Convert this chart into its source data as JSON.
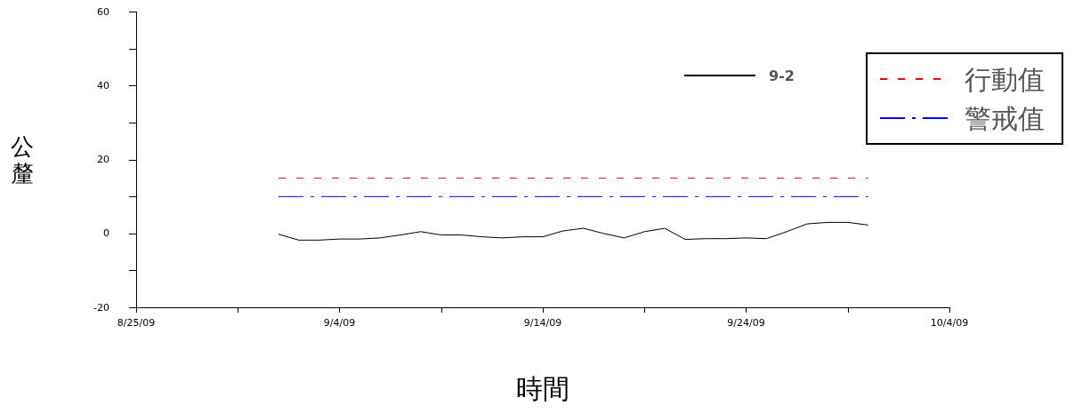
{
  "chart_data": {
    "type": "line",
    "xlabel": "時間",
    "ylabel": "公釐",
    "x": [
      "--09-01",
      "--09-02",
      "--09-03",
      "--09-04",
      "--09-05",
      "--09-06",
      "--09-07",
      "--09-08",
      "--09-09",
      "--09-10",
      "--09-11",
      "--09-12",
      "--09-13",
      "--09-14",
      "--09-15",
      "--09-16",
      "--09-17",
      "--09-18",
      "--09-19",
      "--09-20",
      "--09-21",
      "--09-22",
      "--09-23",
      "--09-24",
      "--09-25",
      "--09-26",
      "--09-27",
      "--09-28",
      "--09-29",
      "--09-30"
    ],
    "series": [
      {
        "name": "9-2",
        "color": "#000000",
        "line_style": "solid",
        "values": [
          -0.2,
          -1.8,
          -1.8,
          -1.5,
          -1.5,
          -1.2,
          -0.4,
          0.5,
          -0.4,
          -0.4,
          -0.9,
          -1.2,
          -0.9,
          -0.9,
          0.7,
          1.4,
          0,
          -1.2,
          0.5,
          1.4,
          -1.6,
          -1.4,
          -1.4,
          -1.2,
          -1.4,
          0.5,
          2.6,
          3,
          3,
          2.3
        ]
      },
      {
        "name": "行動值",
        "color": "#ff0000",
        "line_style": "dashed",
        "values": [
          15,
          15,
          15,
          15,
          15,
          15,
          15,
          15,
          15,
          15,
          15,
          15,
          15,
          15,
          15,
          15,
          15,
          15,
          15,
          15,
          15,
          15,
          15,
          15,
          15,
          15,
          15,
          15,
          15,
          15
        ]
      },
      {
        "name": "警戒值",
        "color": "#0000ff",
        "line_style": "dashdot",
        "values": [
          10,
          10,
          10,
          10,
          10,
          10,
          10,
          10,
          10,
          10,
          10,
          10,
          10,
          10,
          10,
          10,
          10,
          10,
          10,
          10,
          10,
          10,
          10,
          10,
          10,
          10,
          10,
          10,
          10,
          10
        ]
      }
    ],
    "xlim": [
      "--08-25",
      "--10-04"
    ],
    "xticks": [
      {
        "value": "--08-25",
        "label": "8/25/09"
      },
      {
        "value": "--08-30",
        "label": null
      },
      {
        "value": "--09-04",
        "label": "9/4/09"
      },
      {
        "value": "--09-09",
        "label": null
      },
      {
        "value": "--09-14",
        "label": "9/14/09"
      },
      {
        "value": "--09-19",
        "label": null
      },
      {
        "value": "--09-24",
        "label": "9/24/09"
      },
      {
        "value": "--09-29",
        "label": null
      },
      {
        "value": "--10-04",
        "label": "10/4/09"
      }
    ],
    "ylim": [
      -20,
      60
    ],
    "yticks": [
      -20,
      {
        "value": -10,
        "label": null
      },
      0,
      {
        "value": 10,
        "label": null
      },
      20,
      {
        "value": 30,
        "label": null
      },
      40,
      {
        "value": 50,
        "label": null
      },
      60
    ],
    "grid": false,
    "legend": "top right",
    "marker": "none"
  }
}
